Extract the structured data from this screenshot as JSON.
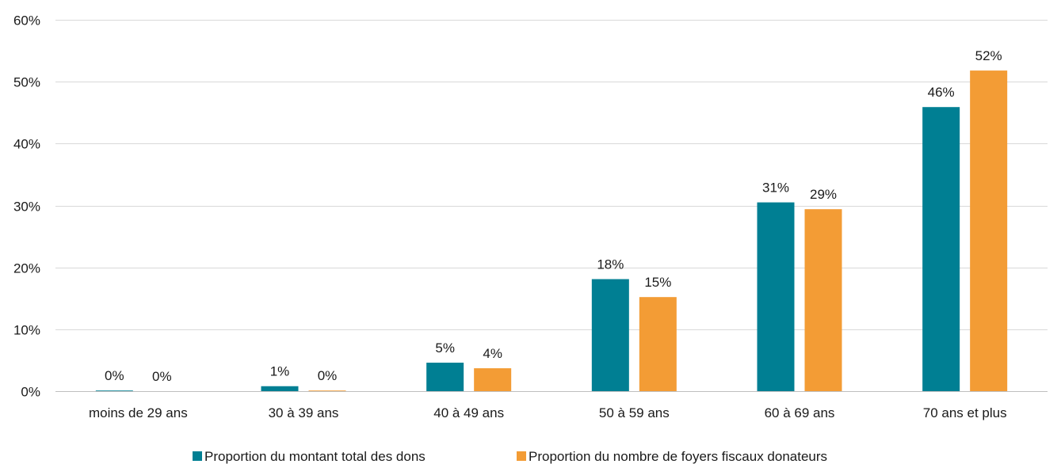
{
  "chart_data": {
    "type": "bar",
    "title": "",
    "xlabel": "",
    "ylabel": "",
    "ylim": [
      0,
      60
    ],
    "yticks": [
      0,
      10,
      20,
      30,
      40,
      50,
      60
    ],
    "ytick_labels": [
      "0%",
      "10%",
      "20%",
      "30%",
      "40%",
      "50%",
      "60%"
    ],
    "grid": true,
    "legend_position": "bottom",
    "categories": [
      "moins de 29 ans",
      "30 à 39 ans",
      "40 à 49 ans",
      "50 à 59 ans",
      "60 à 69 ans",
      "70 ans et plus"
    ],
    "series": [
      {
        "name": "Proportion du montant total des dons",
        "color": "#007f93",
        "values": [
          0.1,
          0.8,
          4.6,
          18.1,
          30.5,
          45.9
        ],
        "labels": [
          "0%",
          "1%",
          "5%",
          "18%",
          "31%",
          "46%"
        ]
      },
      {
        "name": "Proportion du nombre de foyers fiscaux donateurs",
        "color": "#f39c35",
        "values": [
          0.0,
          0.1,
          3.7,
          15.2,
          29.4,
          51.8
        ],
        "labels": [
          "0%",
          "0%",
          "4%",
          "15%",
          "29%",
          "52%"
        ]
      }
    ]
  }
}
